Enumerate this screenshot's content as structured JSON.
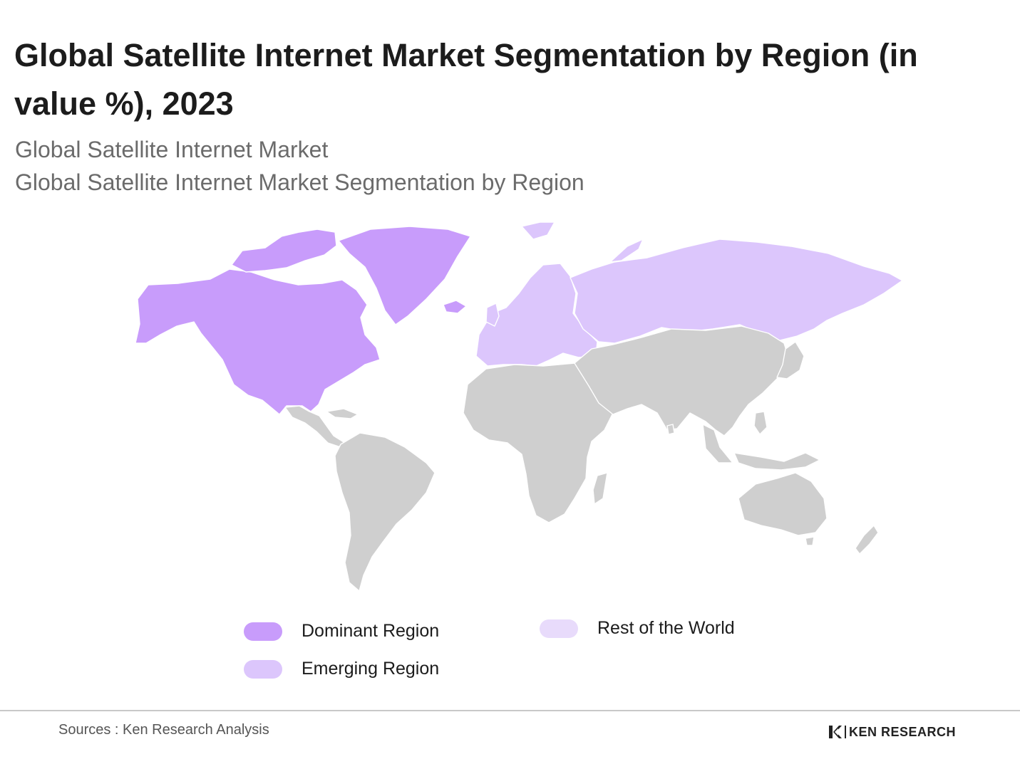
{
  "header": {
    "title": "Global Satellite Internet Market Segmentation by Region (in value %), 2023",
    "subtitle_1": "Global Satellite Internet Market",
    "subtitle_2": "Global Satellite Internet Market Segmentation by Region"
  },
  "map": {
    "colors": {
      "dominant": "#c89cfb",
      "emerging": "#dcc6fc",
      "rest_of_world": "#e8dbfb",
      "other": "#cfcfcf",
      "border": "#ffffff"
    },
    "regions": {
      "dominant": [
        "North America",
        "Greenland"
      ],
      "emerging": [
        "Europe",
        "Russia"
      ],
      "other": [
        "South America",
        "Africa",
        "Asia",
        "Australia"
      ]
    }
  },
  "legend": {
    "items": [
      {
        "label": "Dominant Region",
        "color": "#c89cfb"
      },
      {
        "label": "Emerging Region",
        "color": "#dcc6fc"
      },
      {
        "label": "Rest of the World",
        "color": "#e8dbfb"
      }
    ]
  },
  "footer": {
    "source": "Sources : Ken Research Analysis",
    "brand_name": "KEN RESEARCH",
    "brand_icon": "ken-research-logo-icon"
  }
}
